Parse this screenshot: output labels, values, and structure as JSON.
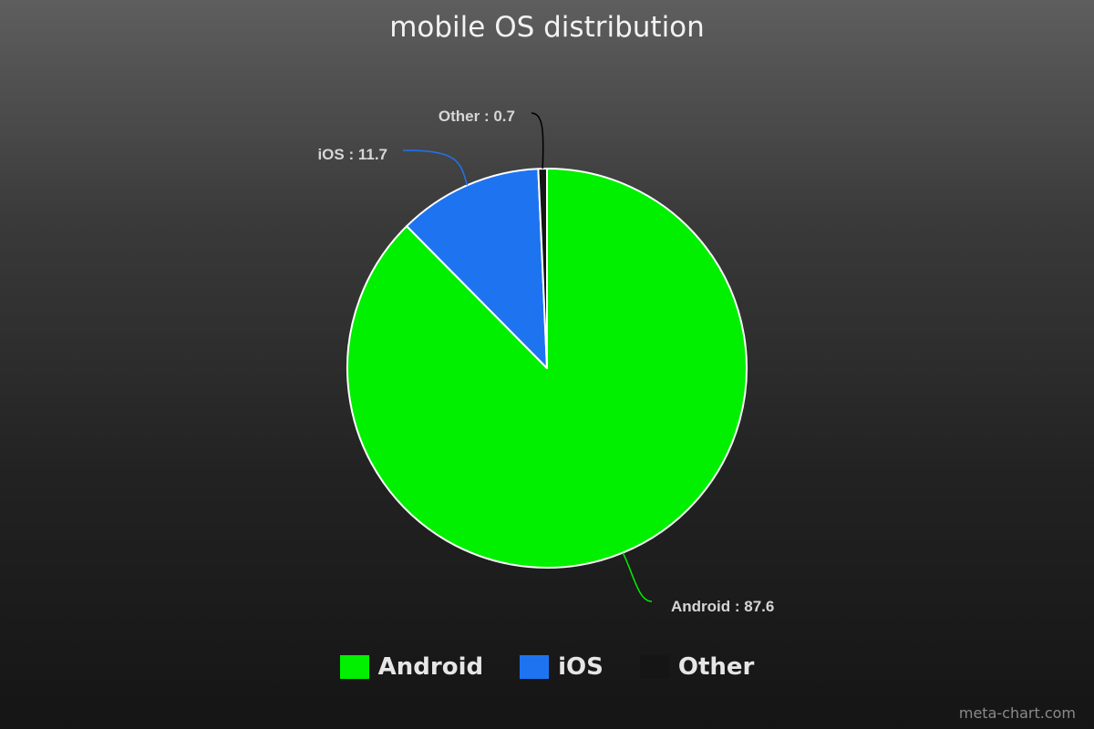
{
  "chart_data": {
    "type": "pie",
    "title": "mobile OS distribution",
    "slices": [
      {
        "label": "Android",
        "value": 87.6,
        "color": "#00f000"
      },
      {
        "label": "iOS",
        "value": 11.7,
        "color": "#1e74f0"
      },
      {
        "label": "Other",
        "value": 0.7,
        "color": "#151515"
      }
    ],
    "legend_placement": "bottom",
    "start": "top",
    "direction": "clockwise"
  },
  "data_labels": [
    {
      "text": "Android : 87.6"
    },
    {
      "text": "iOS : 11.7"
    },
    {
      "text": "Other : 0.7"
    }
  ],
  "legend": [
    {
      "label": "Android",
      "color": "#00f000"
    },
    {
      "label": "iOS",
      "color": "#1e74f0"
    },
    {
      "label": "Other",
      "color": "#151515"
    }
  ],
  "watermark": "meta-chart.com"
}
